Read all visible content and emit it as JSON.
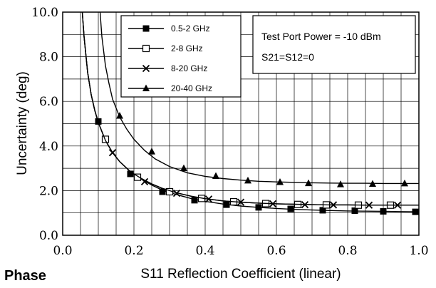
{
  "chart_data": {
    "type": "line",
    "title": "",
    "xlabel": "S11 Reflection Coefficient (linear)",
    "ylabel": "Uncertainty (deg)",
    "xlim": [
      0.0,
      1.0
    ],
    "ylim": [
      0.0,
      10.0
    ],
    "x_ticks": [
      "0.0",
      "0.2",
      "0.4",
      "0.6",
      "0.8",
      "1.0"
    ],
    "y_ticks": [
      "0.0",
      "2.0",
      "4.0",
      "6.0",
      "8.0",
      "10.0"
    ],
    "x_tick_values": [
      0.0,
      0.2,
      0.4,
      0.6,
      0.8,
      1.0
    ],
    "y_tick_values": [
      0.0,
      2.0,
      4.0,
      6.0,
      8.0,
      10.0
    ],
    "x_minor_step": 0.05,
    "y_minor_step": 1.0,
    "grid": true,
    "legend_position": "top-left",
    "series": [
      {
        "name": "0.5-2 GHz",
        "marker": "filled-square",
        "curve_x": [
          0.055,
          0.06,
          0.07,
          0.08,
          0.09,
          0.1,
          0.12,
          0.14,
          0.16,
          0.19,
          0.22,
          0.25,
          0.28,
          0.32,
          0.36,
          0.4,
          0.45,
          0.5,
          0.55,
          0.6,
          0.65,
          0.7,
          0.75,
          0.8,
          0.85,
          0.9,
          0.95,
          1.0
        ],
        "curve_y": [
          10.0,
          8.9,
          7.3,
          6.3,
          5.6,
          5.05,
          4.25,
          3.7,
          3.3,
          2.85,
          2.52,
          2.25,
          2.02,
          1.82,
          1.65,
          1.52,
          1.4,
          1.31,
          1.25,
          1.2,
          1.16,
          1.13,
          1.11,
          1.09,
          1.08,
          1.07,
          1.06,
          1.05
        ],
        "marker_x": [
          0.1,
          0.19,
          0.28,
          0.37,
          0.46,
          0.55,
          0.64,
          0.73,
          0.82,
          0.9,
          0.99
        ],
        "marker_y": [
          5.1,
          2.75,
          1.95,
          1.57,
          1.37,
          1.25,
          1.18,
          1.12,
          1.1,
          1.07,
          1.05
        ]
      },
      {
        "name": "2-8 GHz",
        "marker": "open-square",
        "curve_x": [
          0.055,
          0.06,
          0.07,
          0.08,
          0.09,
          0.1,
          0.12,
          0.14,
          0.16,
          0.19,
          0.22,
          0.25,
          0.28,
          0.32,
          0.36,
          0.4,
          0.45,
          0.5,
          0.55,
          0.6,
          0.65,
          0.7,
          0.75,
          0.8,
          0.85,
          0.9,
          0.95,
          1.0
        ],
        "curve_y": [
          10.0,
          8.9,
          7.3,
          6.3,
          5.6,
          5.05,
          4.25,
          3.7,
          3.3,
          2.85,
          2.55,
          2.3,
          2.1,
          1.9,
          1.75,
          1.64,
          1.54,
          1.48,
          1.44,
          1.41,
          1.39,
          1.37,
          1.36,
          1.36,
          1.35,
          1.35,
          1.35,
          1.35
        ],
        "marker_x": [
          0.12,
          0.21,
          0.3,
          0.39,
          0.48,
          0.57,
          0.66,
          0.74,
          0.83,
          0.92
        ],
        "marker_y": [
          4.3,
          2.6,
          1.95,
          1.65,
          1.5,
          1.42,
          1.38,
          1.36,
          1.35,
          1.35
        ]
      },
      {
        "name": "8-20 GHz",
        "marker": "x",
        "curve_x": [
          0.055,
          0.06,
          0.07,
          0.08,
          0.09,
          0.1,
          0.12,
          0.14,
          0.16,
          0.19,
          0.22,
          0.25,
          0.28,
          0.32,
          0.36,
          0.4,
          0.45,
          0.5,
          0.55,
          0.6,
          0.65,
          0.7,
          0.75,
          0.8,
          0.85,
          0.9,
          0.95,
          1.0
        ],
        "curve_y": [
          10.0,
          8.9,
          7.3,
          6.3,
          5.6,
          5.05,
          4.25,
          3.7,
          3.3,
          2.85,
          2.55,
          2.3,
          2.1,
          1.9,
          1.75,
          1.64,
          1.54,
          1.48,
          1.44,
          1.41,
          1.39,
          1.37,
          1.36,
          1.36,
          1.35,
          1.35,
          1.35,
          1.35
        ],
        "marker_x": [
          0.14,
          0.23,
          0.32,
          0.41,
          0.5,
          0.59,
          0.68,
          0.76,
          0.86,
          0.94
        ],
        "marker_y": [
          3.7,
          2.4,
          1.88,
          1.62,
          1.48,
          1.41,
          1.37,
          1.36,
          1.35,
          1.35
        ]
      },
      {
        "name": "20-40 GHz",
        "marker": "filled-triangle",
        "curve_x": [
          0.105,
          0.11,
          0.12,
          0.13,
          0.14,
          0.16,
          0.18,
          0.2,
          0.23,
          0.26,
          0.3,
          0.35,
          0.4,
          0.45,
          0.5,
          0.55,
          0.6,
          0.65,
          0.7,
          0.75,
          0.8,
          0.85,
          0.9,
          0.95,
          1.0
        ],
        "curve_y": [
          10.0,
          8.9,
          7.6,
          6.8,
          6.1,
          5.3,
          4.75,
          4.3,
          3.8,
          3.42,
          3.08,
          2.8,
          2.64,
          2.54,
          2.47,
          2.42,
          2.39,
          2.37,
          2.35,
          2.34,
          2.33,
          2.33,
          2.32,
          2.32,
          2.32
        ],
        "marker_x": [
          0.16,
          0.25,
          0.34,
          0.43,
          0.52,
          0.61,
          0.69,
          0.78,
          0.87,
          0.96
        ],
        "marker_y": [
          5.35,
          3.75,
          3.0,
          2.65,
          2.45,
          2.38,
          2.33,
          2.28,
          2.3,
          2.32
        ]
      }
    ],
    "annotations": [
      "Test Port Power = -10 dBm",
      "S21=S12=0"
    ],
    "caption": "Phase"
  }
}
